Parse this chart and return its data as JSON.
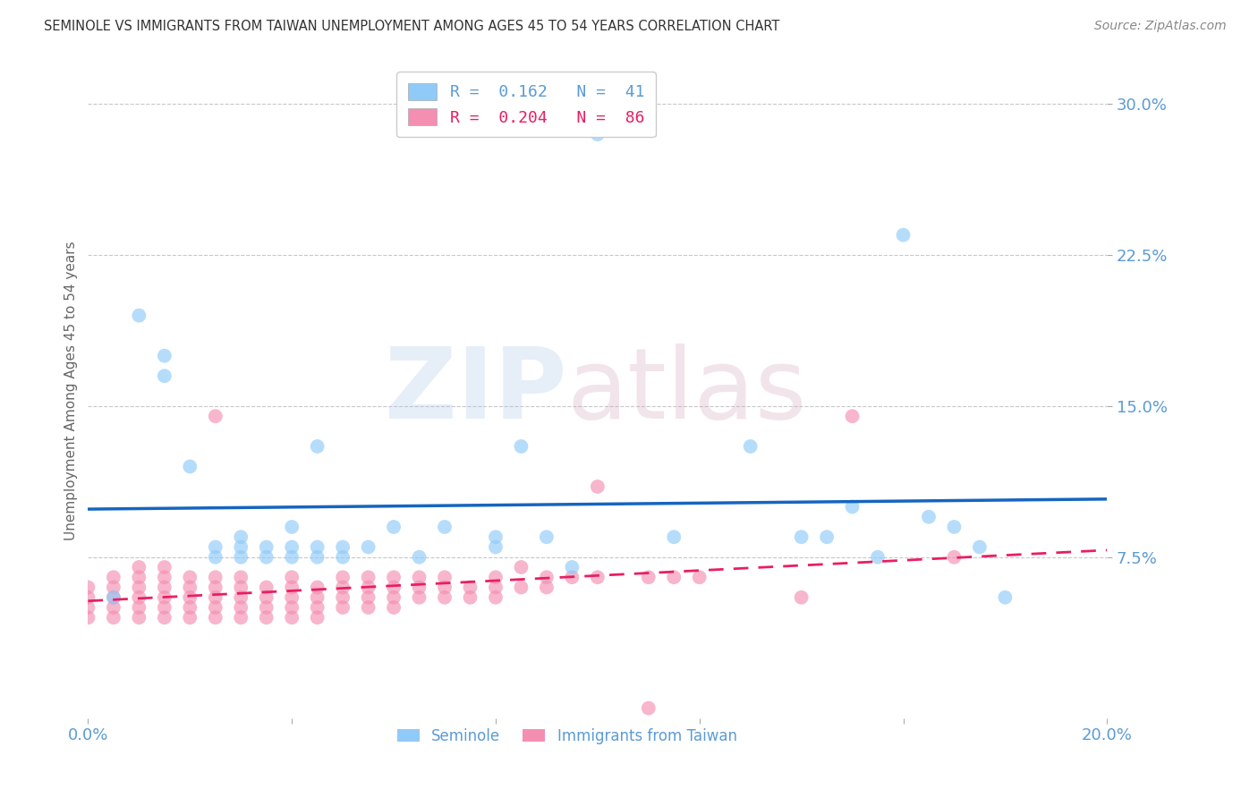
{
  "title": "SEMINOLE VS IMMIGRANTS FROM TAIWAN UNEMPLOYMENT AMONG AGES 45 TO 54 YEARS CORRELATION CHART",
  "source": "Source: ZipAtlas.com",
  "ylabel": "Unemployment Among Ages 45 to 54 years",
  "ytick_labels": [
    "30.0%",
    "22.5%",
    "15.0%",
    "7.5%"
  ],
  "ytick_vals": [
    0.3,
    0.225,
    0.15,
    0.075
  ],
  "xlim": [
    0.0,
    0.2
  ],
  "ylim": [
    -0.005,
    0.32
  ],
  "seminole_scatter": [
    [
      0.005,
      0.055
    ],
    [
      0.01,
      0.195
    ],
    [
      0.015,
      0.175
    ],
    [
      0.015,
      0.165
    ],
    [
      0.02,
      0.12
    ],
    [
      0.025,
      0.08
    ],
    [
      0.025,
      0.075
    ],
    [
      0.03,
      0.085
    ],
    [
      0.03,
      0.08
    ],
    [
      0.03,
      0.075
    ],
    [
      0.035,
      0.08
    ],
    [
      0.035,
      0.075
    ],
    [
      0.04,
      0.08
    ],
    [
      0.04,
      0.075
    ],
    [
      0.04,
      0.09
    ],
    [
      0.045,
      0.13
    ],
    [
      0.045,
      0.08
    ],
    [
      0.045,
      0.075
    ],
    [
      0.05,
      0.08
    ],
    [
      0.05,
      0.075
    ],
    [
      0.055,
      0.08
    ],
    [
      0.06,
      0.09
    ],
    [
      0.065,
      0.075
    ],
    [
      0.07,
      0.09
    ],
    [
      0.08,
      0.085
    ],
    [
      0.08,
      0.08
    ],
    [
      0.085,
      0.13
    ],
    [
      0.09,
      0.085
    ],
    [
      0.095,
      0.07
    ],
    [
      0.1,
      0.285
    ],
    [
      0.115,
      0.085
    ],
    [
      0.13,
      0.13
    ],
    [
      0.14,
      0.085
    ],
    [
      0.145,
      0.085
    ],
    [
      0.15,
      0.1
    ],
    [
      0.155,
      0.075
    ],
    [
      0.16,
      0.235
    ],
    [
      0.165,
      0.095
    ],
    [
      0.17,
      0.09
    ],
    [
      0.175,
      0.08
    ],
    [
      0.18,
      0.055
    ]
  ],
  "taiwan_scatter": [
    [
      0.0,
      0.06
    ],
    [
      0.0,
      0.055
    ],
    [
      0.0,
      0.05
    ],
    [
      0.0,
      0.045
    ],
    [
      0.005,
      0.065
    ],
    [
      0.005,
      0.06
    ],
    [
      0.005,
      0.055
    ],
    [
      0.005,
      0.05
    ],
    [
      0.005,
      0.045
    ],
    [
      0.01,
      0.07
    ],
    [
      0.01,
      0.065
    ],
    [
      0.01,
      0.06
    ],
    [
      0.01,
      0.055
    ],
    [
      0.01,
      0.05
    ],
    [
      0.01,
      0.045
    ],
    [
      0.015,
      0.07
    ],
    [
      0.015,
      0.065
    ],
    [
      0.015,
      0.06
    ],
    [
      0.015,
      0.055
    ],
    [
      0.015,
      0.05
    ],
    [
      0.015,
      0.045
    ],
    [
      0.02,
      0.065
    ],
    [
      0.02,
      0.06
    ],
    [
      0.02,
      0.055
    ],
    [
      0.02,
      0.05
    ],
    [
      0.02,
      0.045
    ],
    [
      0.025,
      0.145
    ],
    [
      0.025,
      0.065
    ],
    [
      0.025,
      0.06
    ],
    [
      0.025,
      0.055
    ],
    [
      0.025,
      0.05
    ],
    [
      0.025,
      0.045
    ],
    [
      0.03,
      0.065
    ],
    [
      0.03,
      0.06
    ],
    [
      0.03,
      0.055
    ],
    [
      0.03,
      0.05
    ],
    [
      0.03,
      0.045
    ],
    [
      0.035,
      0.06
    ],
    [
      0.035,
      0.055
    ],
    [
      0.035,
      0.05
    ],
    [
      0.035,
      0.045
    ],
    [
      0.04,
      0.065
    ],
    [
      0.04,
      0.06
    ],
    [
      0.04,
      0.055
    ],
    [
      0.04,
      0.05
    ],
    [
      0.04,
      0.045
    ],
    [
      0.045,
      0.06
    ],
    [
      0.045,
      0.055
    ],
    [
      0.045,
      0.05
    ],
    [
      0.045,
      0.045
    ],
    [
      0.05,
      0.065
    ],
    [
      0.05,
      0.06
    ],
    [
      0.05,
      0.055
    ],
    [
      0.05,
      0.05
    ],
    [
      0.055,
      0.065
    ],
    [
      0.055,
      0.06
    ],
    [
      0.055,
      0.055
    ],
    [
      0.055,
      0.05
    ],
    [
      0.06,
      0.065
    ],
    [
      0.06,
      0.06
    ],
    [
      0.06,
      0.055
    ],
    [
      0.06,
      0.05
    ],
    [
      0.065,
      0.065
    ],
    [
      0.065,
      0.06
    ],
    [
      0.065,
      0.055
    ],
    [
      0.07,
      0.065
    ],
    [
      0.07,
      0.06
    ],
    [
      0.07,
      0.055
    ],
    [
      0.075,
      0.06
    ],
    [
      0.075,
      0.055
    ],
    [
      0.08,
      0.065
    ],
    [
      0.08,
      0.06
    ],
    [
      0.08,
      0.055
    ],
    [
      0.085,
      0.07
    ],
    [
      0.085,
      0.06
    ],
    [
      0.09,
      0.065
    ],
    [
      0.09,
      0.06
    ],
    [
      0.095,
      0.065
    ],
    [
      0.1,
      0.065
    ],
    [
      0.1,
      0.11
    ],
    [
      0.11,
      0.065
    ],
    [
      0.11,
      0.0
    ],
    [
      0.115,
      0.065
    ],
    [
      0.12,
      0.065
    ],
    [
      0.14,
      0.055
    ],
    [
      0.15,
      0.145
    ],
    [
      0.17,
      0.075
    ]
  ],
  "seminole_line_color": "#1565c0",
  "taiwan_line_color": "#e91e63",
  "scatter_blue": "#90caf9",
  "scatter_pink": "#f48fb1",
  "background_color": "#ffffff",
  "grid_color": "#c8c8c8",
  "tick_color": "#5b9bd5",
  "title_color": "#333333"
}
